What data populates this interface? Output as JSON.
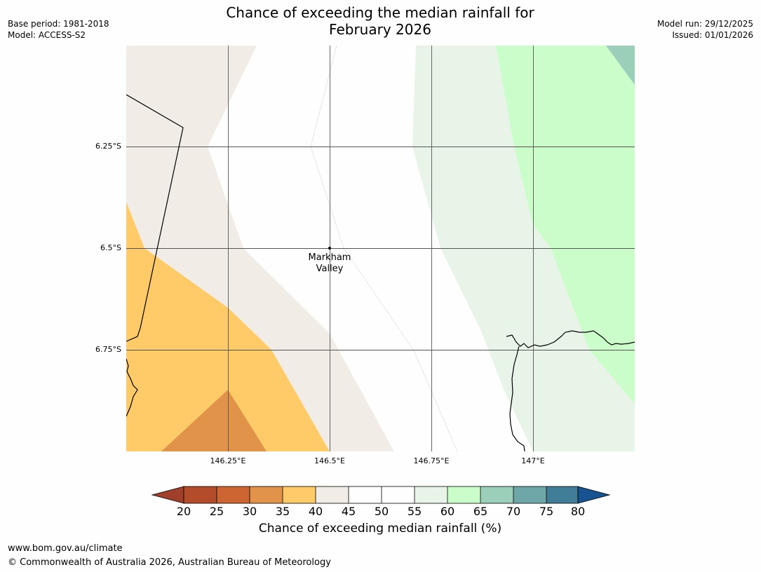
{
  "title_line1": "Chance of exceeding the median rainfall for",
  "title_line2": "February 2026",
  "base_period": "Base period: 1981-2018",
  "model": "Model: ACCESS-S2",
  "model_run": "Model run: 29/12/2025",
  "issued": "Issued: 01/01/2026",
  "latitude_labels": [
    "6.25°S",
    "6.5°S",
    "6.75°S"
  ],
  "longitude_labels": [
    "146.25°E",
    "146.5°E",
    "146.75°E",
    "147°E"
  ],
  "place_label": [
    "Markham",
    "Valley"
  ],
  "colorbar": {
    "label": "Chance of exceeding median rainfall (%)",
    "ticks": [
      "20",
      "25",
      "30",
      "35",
      "40",
      "45",
      "50",
      "55",
      "60",
      "65",
      "70",
      "75",
      "80"
    ],
    "colors": [
      "#a1402a",
      "#b24c2a",
      "#cc6531",
      "#e09349",
      "#fecb68",
      "#f1ece6",
      "#fefefe",
      "#fefefe",
      "#e9f4e9",
      "#cbfdca",
      "#9bcfb9",
      "#6fa7a8",
      "#427d98",
      "#175391"
    ]
  },
  "footer_url": "www.bom.gov.au/climate",
  "footer_copyright": "© Commonwealth of Australia 2026, Australian Bureau of Meteorology"
}
